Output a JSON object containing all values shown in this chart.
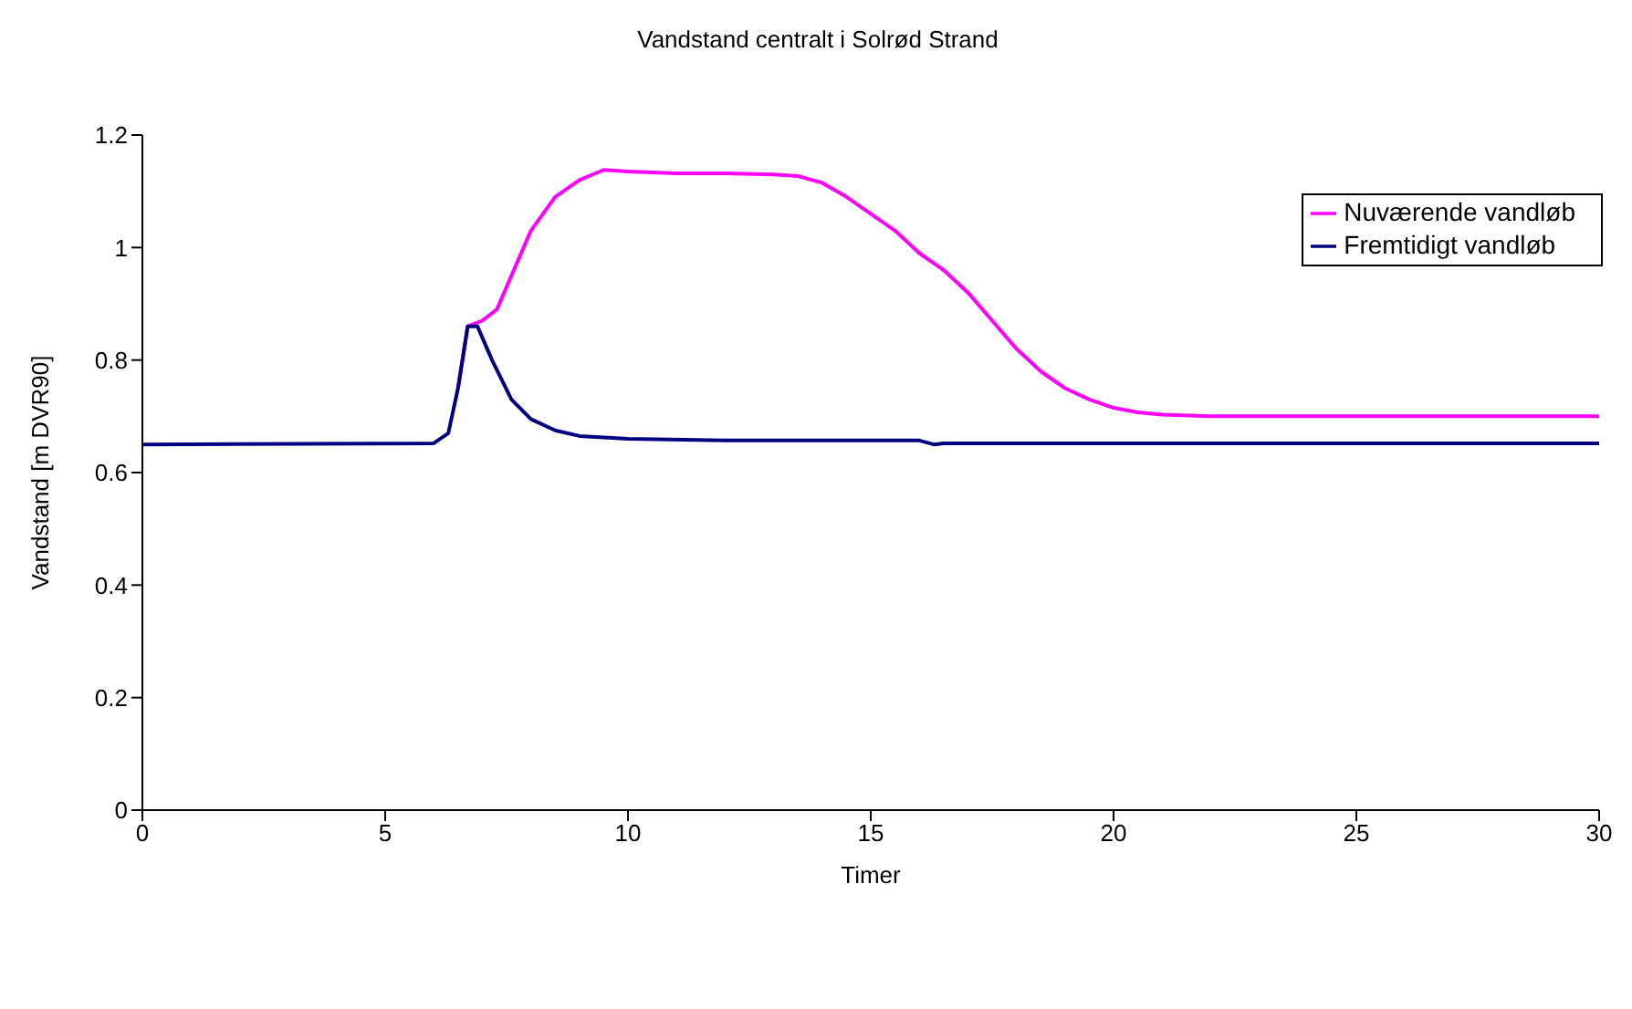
{
  "chart_data": {
    "type": "line",
    "title": "Vandstand centralt i Solrød Strand",
    "xlabel": "Timer",
    "ylabel": "Vandstand [m DVR90]",
    "xlim": [
      0,
      30
    ],
    "xticks": [
      0,
      5,
      10,
      15,
      20,
      25,
      30
    ],
    "ylim": [
      0,
      1.2
    ],
    "yticks": [
      0,
      0.2,
      0.4,
      0.6,
      0.8,
      1,
      1.2
    ],
    "grid": false,
    "legend": "top right",
    "marker": "none",
    "line_style": "solid",
    "series": [
      {
        "name": "Nuværende vandløb",
        "color": "#ff00ff",
        "x": [
          6.5,
          6.7,
          7,
          7.3,
          7.6,
          8,
          8.5,
          9,
          9.5,
          10,
          11,
          12,
          13,
          13.5,
          14,
          14.5,
          15,
          15.5,
          16,
          16.5,
          17,
          17.5,
          18,
          18.5,
          19,
          19.5,
          20,
          20.5,
          21,
          22,
          30
        ],
        "values": [
          0.75,
          0.86,
          0.87,
          0.89,
          0.95,
          1.03,
          1.09,
          1.12,
          1.138,
          1.135,
          1.132,
          1.132,
          1.13,
          1.127,
          1.115,
          1.09,
          1.06,
          1.03,
          0.99,
          0.96,
          0.92,
          0.87,
          0.82,
          0.78,
          0.75,
          0.73,
          0.715,
          0.707,
          0.703,
          0.7,
          0.7
        ]
      },
      {
        "name": "Fremtidigt vandløb",
        "color": "#000080",
        "x": [
          0,
          6,
          6.3,
          6.5,
          6.7,
          6.9,
          7.2,
          7.6,
          8,
          8.5,
          9,
          10,
          12,
          15,
          16,
          16.3,
          16.5,
          30
        ],
        "values": [
          0.65,
          0.652,
          0.67,
          0.75,
          0.86,
          0.86,
          0.8,
          0.73,
          0.695,
          0.675,
          0.665,
          0.66,
          0.657,
          0.657,
          0.657,
          0.65,
          0.652,
          0.652
        ]
      }
    ]
  }
}
